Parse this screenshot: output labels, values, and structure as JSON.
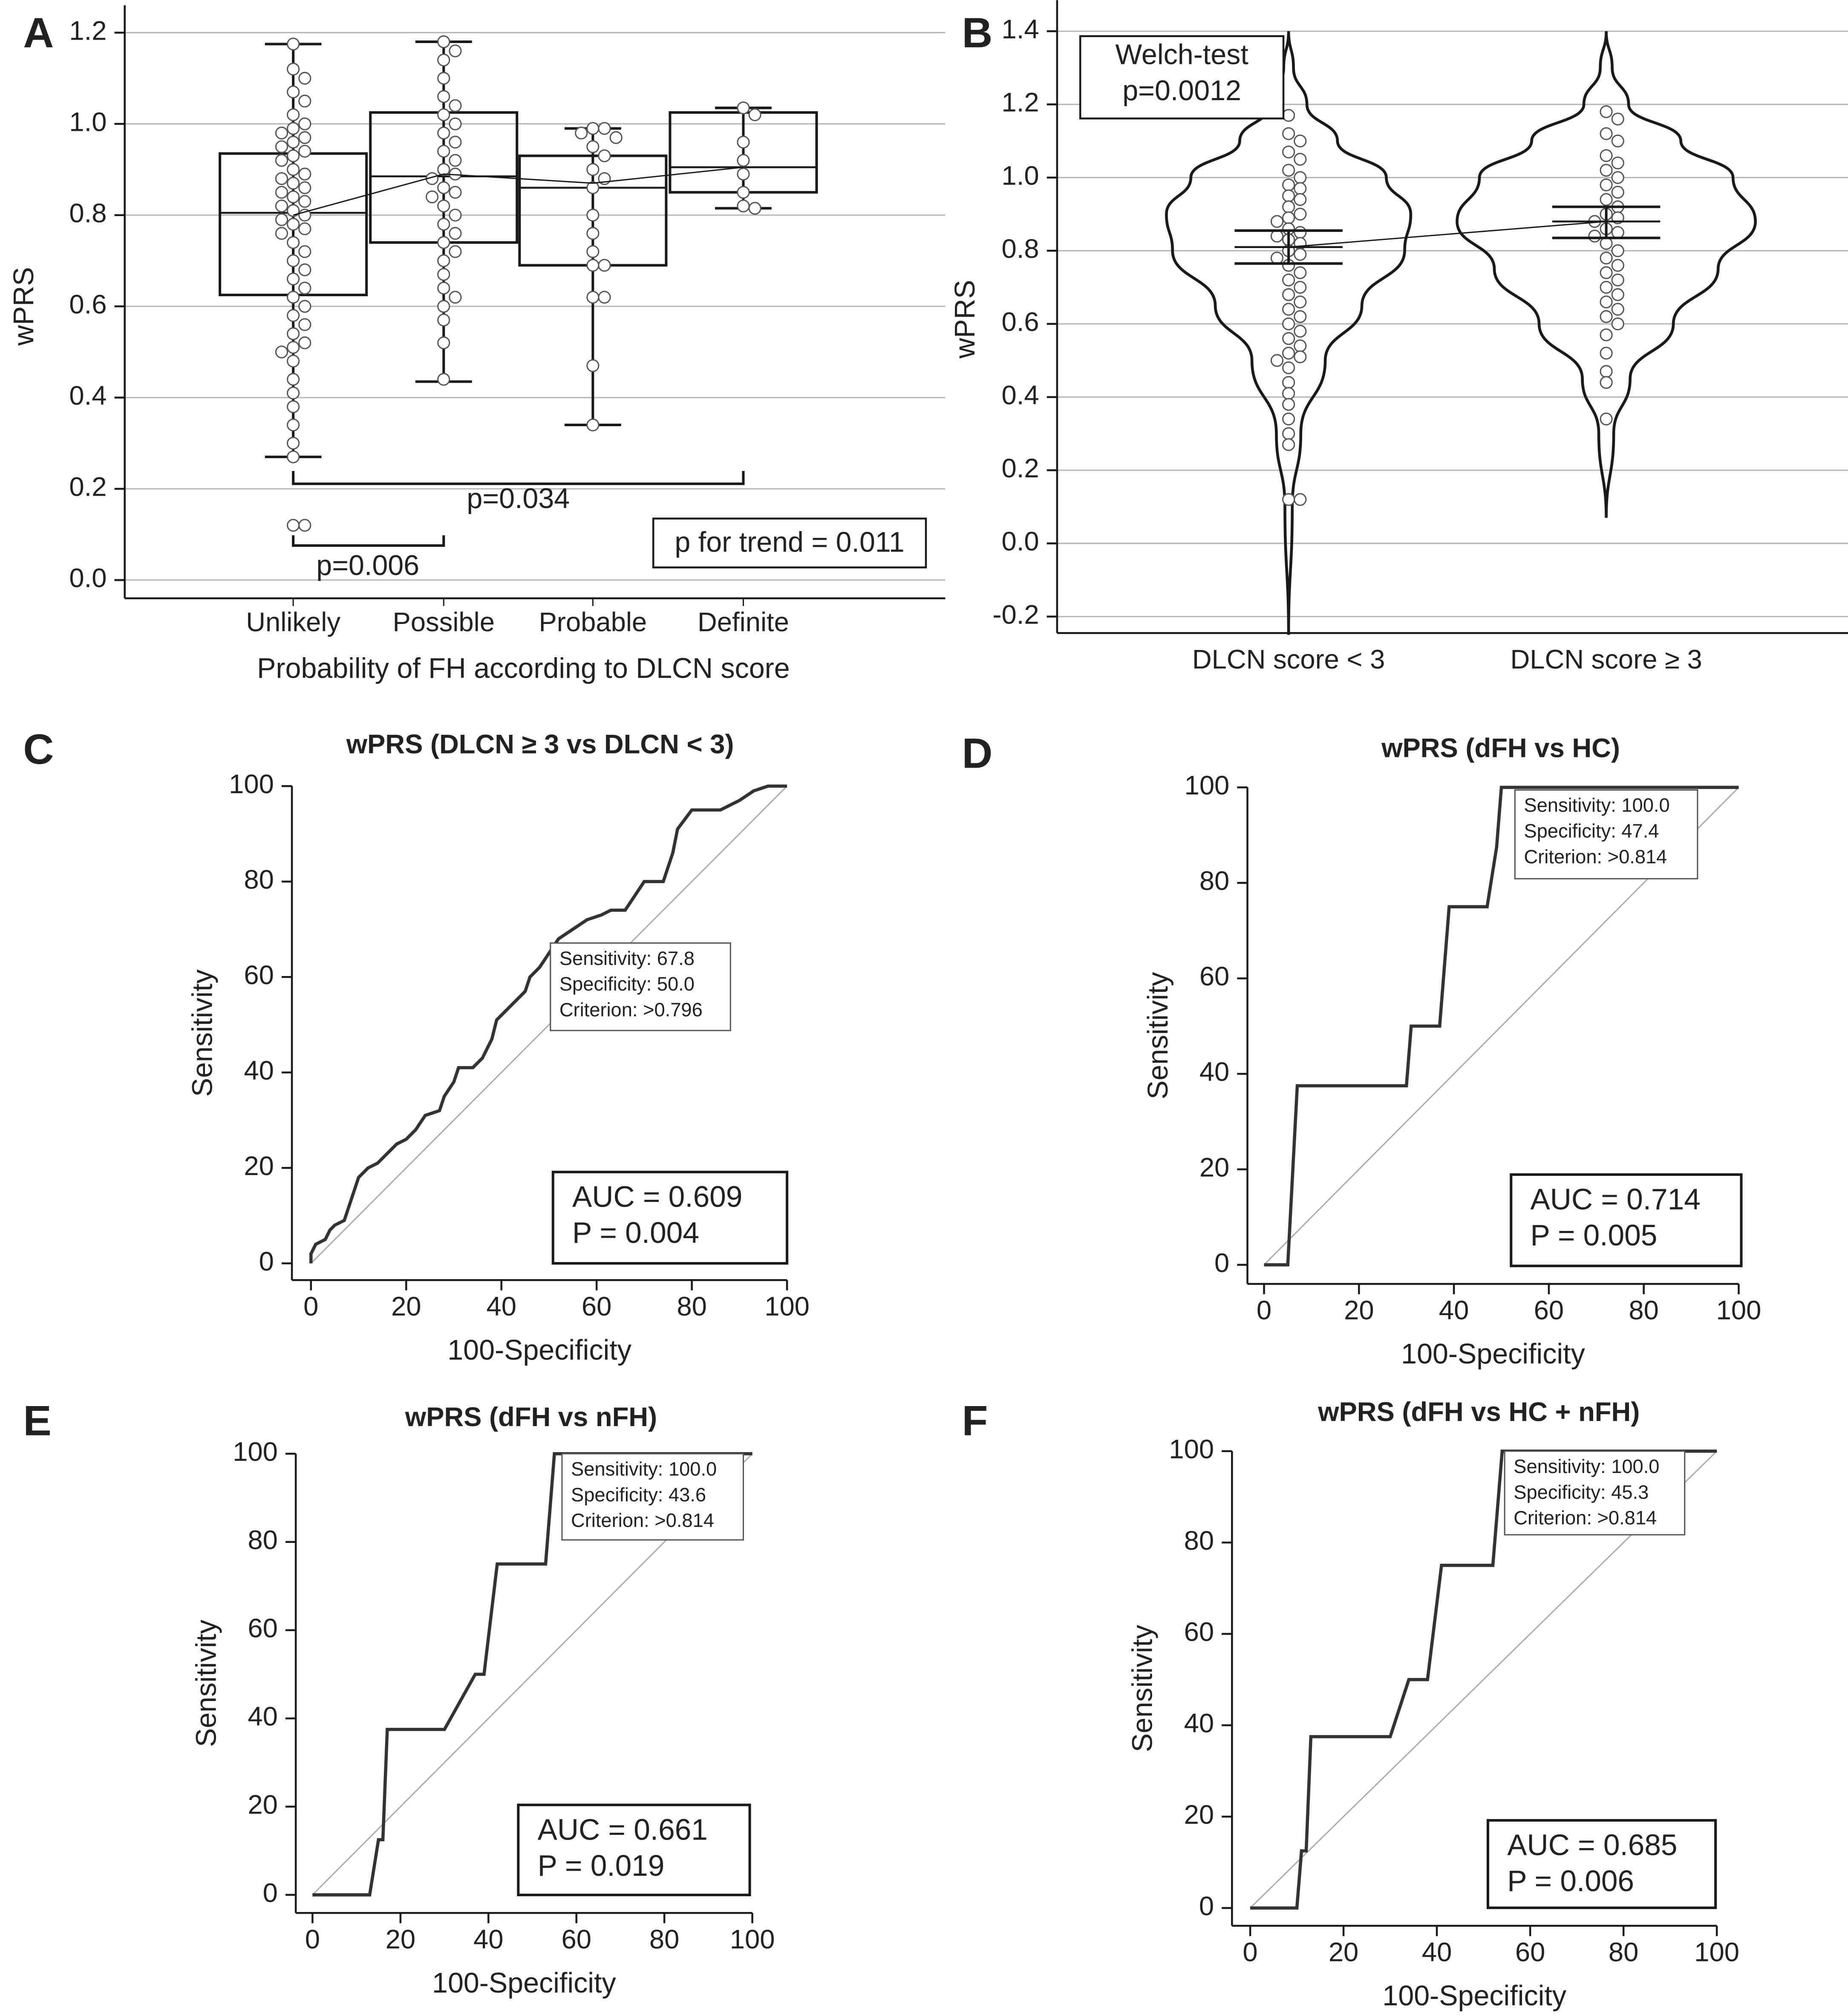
{
  "chart_data": [
    {
      "type": "box",
      "panel": "A",
      "ylabel": "wPRS",
      "xlabel": "Probability of FH according to DLCN score",
      "categories": [
        "Unlikely",
        "Possible",
        "Probable",
        "Definite"
      ],
      "whisker_low": [
        0.27,
        0.435,
        0.34,
        0.815
      ],
      "q1": [
        0.625,
        0.74,
        0.69,
        0.85
      ],
      "median": [
        0.805,
        0.885,
        0.86,
        0.905
      ],
      "q3": [
        0.935,
        1.025,
        0.93,
        1.025
      ],
      "whisker_high": [
        1.175,
        1.18,
        0.99,
        1.035
      ],
      "means": [
        0.8,
        0.89,
        0.87,
        0.905
      ],
      "points": [
        [
          1.175,
          1.12,
          1.1,
          1.07,
          1.05,
          1.02,
          1.0,
          0.99,
          0.98,
          0.97,
          0.96,
          0.95,
          0.94,
          0.93,
          0.92,
          0.9,
          0.89,
          0.88,
          0.87,
          0.86,
          0.85,
          0.84,
          0.83,
          0.82,
          0.81,
          0.8,
          0.79,
          0.78,
          0.77,
          0.76,
          0.74,
          0.72,
          0.7,
          0.68,
          0.66,
          0.64,
          0.62,
          0.6,
          0.58,
          0.56,
          0.54,
          0.52,
          0.51,
          0.5,
          0.48,
          0.44,
          0.41,
          0.38,
          0.34,
          0.3,
          0.27,
          0.12,
          0.12
        ],
        [
          1.18,
          1.16,
          1.14,
          1.1,
          1.06,
          1.04,
          1.02,
          1.0,
          0.98,
          0.96,
          0.94,
          0.92,
          0.9,
          0.89,
          0.88,
          0.86,
          0.85,
          0.84,
          0.82,
          0.8,
          0.78,
          0.76,
          0.74,
          0.72,
          0.7,
          0.67,
          0.64,
          0.62,
          0.6,
          0.57,
          0.52,
          0.44
        ],
        [
          0.99,
          0.99,
          0.98,
          0.97,
          0.95,
          0.93,
          0.9,
          0.88,
          0.86,
          0.8,
          0.76,
          0.72,
          0.69,
          0.69,
          0.62,
          0.62,
          0.47,
          0.34
        ],
        [
          1.035,
          1.02,
          0.96,
          0.92,
          0.89,
          0.85,
          0.82,
          0.815
        ]
      ],
      "annotations": [
        "p=0.006",
        "p=0.034",
        "p for trend = 0.011"
      ],
      "ylim": [
        -0.04,
        1.26
      ],
      "yticks": [
        {
          "value": 0,
          "label": "0.0"
        },
        0.2,
        0.4,
        0.6,
        0.8,
        {
          "value": 1,
          "label": "1.0"
        },
        1.2
      ],
      "grid": true
    },
    {
      "type": "violin",
      "panel": "B",
      "ylabel": "wPRS",
      "categories": [
        "DLCN score < 3",
        "DLCN score ≥ 3"
      ],
      "means": [
        0.81,
        0.88
      ],
      "ci_low": [
        0.765,
        0.835
      ],
      "ci_high": [
        0.855,
        0.92
      ],
      "density": [
        {
          "y": [
            -0.25,
            0.1,
            0.3,
            0.5,
            0.65,
            0.8,
            0.9,
            1.0,
            1.1,
            1.2,
            1.3,
            1.4
          ],
          "width": [
            0,
            0.03,
            0.1,
            0.3,
            0.6,
            0.95,
            1.0,
            0.8,
            0.4,
            0.15,
            0.04,
            0
          ]
        },
        {
          "y": [
            0.07,
            0.3,
            0.45,
            0.6,
            0.75,
            0.88,
            1.0,
            1.1,
            1.2,
            1.3,
            1.4
          ],
          "width": [
            0,
            0.05,
            0.16,
            0.45,
            0.75,
            1.0,
            0.85,
            0.5,
            0.15,
            0.04,
            0
          ]
        }
      ],
      "points": [
        [
          1.17,
          1.12,
          1.1,
          1.07,
          1.05,
          1.02,
          1.0,
          0.98,
          0.97,
          0.95,
          0.94,
          0.92,
          0.9,
          0.89,
          0.88,
          0.86,
          0.85,
          0.84,
          0.83,
          0.82,
          0.8,
          0.79,
          0.78,
          0.76,
          0.74,
          0.72,
          0.7,
          0.68,
          0.66,
          0.64,
          0.62,
          0.6,
          0.58,
          0.56,
          0.54,
          0.52,
          0.51,
          0.5,
          0.48,
          0.44,
          0.41,
          0.38,
          0.34,
          0.3,
          0.27,
          0.12,
          0.12
        ],
        [
          1.18,
          1.16,
          1.12,
          1.1,
          1.06,
          1.04,
          1.02,
          1.0,
          0.98,
          0.96,
          0.94,
          0.92,
          0.9,
          0.89,
          0.88,
          0.86,
          0.85,
          0.84,
          0.82,
          0.8,
          0.78,
          0.76,
          0.74,
          0.72,
          0.7,
          0.68,
          0.66,
          0.64,
          0.62,
          0.6,
          0.57,
          0.52,
          0.47,
          0.44,
          0.34
        ]
      ],
      "annotations": [
        "Welch-test",
        "p=0.0012"
      ],
      "ylim": [
        -0.245,
        1.485
      ],
      "yticks": [
        -0.2,
        {
          "value": 0,
          "label": "0.0"
        },
        0.2,
        0.4,
        0.6,
        0.8,
        {
          "value": 1,
          "label": "1.0"
        },
        1.2,
        1.4
      ],
      "grid": true
    },
    {
      "type": "roc",
      "panel": "C",
      "title": "wPRS (DLCN ≥ 3 vs DLCN < 3)",
      "xlabel": "100-Specificity",
      "ylabel": "Sensitivity",
      "x": [
        0,
        0,
        1,
        3,
        4,
        5,
        7,
        8,
        9,
        10,
        12,
        14,
        16,
        18,
        20,
        22,
        24,
        27,
        28,
        30,
        31,
        34,
        36,
        38,
        39,
        41,
        43,
        45,
        46,
        48,
        50,
        52,
        55,
        58,
        61,
        63,
        66,
        68,
        70,
        74,
        76,
        77,
        80,
        86,
        90,
        93,
        96,
        100
      ],
      "y": [
        0,
        2,
        4,
        5,
        7,
        8,
        9,
        12,
        15,
        18,
        20,
        21,
        23,
        25,
        26,
        28,
        31,
        32,
        35,
        38,
        41,
        41,
        43,
        47,
        51,
        53,
        55,
        57,
        60,
        62,
        65,
        68,
        70,
        72,
        73,
        74,
        74,
        77,
        80,
        80,
        86,
        91,
        95,
        95,
        97,
        99,
        100,
        100
      ],
      "info": [
        "Sensitivity: 67.8",
        "Specificity: 50.0",
        "Criterion: >0.796"
      ],
      "stats": [
        "AUC = 0.609",
        "P = 0.004"
      ],
      "diagonal": true,
      "xlim": [
        -4,
        100
      ],
      "ylim": [
        -3.5,
        100
      ],
      "xticks": [
        0,
        20,
        40,
        60,
        80,
        100
      ],
      "yticks": [
        0,
        20,
        40,
        60,
        80,
        100
      ]
    },
    {
      "type": "roc",
      "panel": "D",
      "title": "wPRS (dFH vs HC)",
      "xlabel": "100-Specificity",
      "ylabel": "Sensitivity",
      "x": [
        0,
        5,
        7,
        30,
        31,
        37,
        39,
        47,
        49,
        50,
        100
      ],
      "y": [
        0,
        0,
        37.5,
        37.5,
        50,
        50,
        75,
        75,
        87.5,
        100,
        100
      ],
      "info": [
        "Sensitivity: 100.0",
        "Specificity: 47.4",
        "Criterion: >0.814"
      ],
      "stats": [
        "AUC = 0.714",
        "P = 0.005"
      ],
      "diagonal": true,
      "xlim": [
        -3.5,
        100
      ],
      "ylim": [
        -4,
        100
      ],
      "xticks": [
        0,
        20,
        40,
        60,
        80,
        100
      ],
      "yticks": [
        0,
        20,
        40,
        60,
        80,
        100
      ]
    },
    {
      "type": "roc",
      "panel": "E",
      "title": "wPRS (dFH vs nFH)",
      "xlabel": "100-Specificity",
      "ylabel": "Sensitivity",
      "x": [
        0,
        13,
        15,
        16,
        17,
        30,
        37,
        39,
        42,
        53,
        55,
        100
      ],
      "y": [
        0,
        0,
        12.5,
        12.5,
        37.5,
        37.5,
        50,
        50,
        75,
        75,
        100,
        100
      ],
      "info": [
        "Sensitivity: 100.0",
        "Specificity: 43.6",
        "Criterion: >0.814"
      ],
      "stats": [
        "AUC = 0.661",
        "P = 0.019"
      ],
      "diagonal": true,
      "xlim": [
        -3.8,
        100
      ],
      "ylim": [
        -4.1,
        100
      ],
      "xticks": [
        0,
        20,
        40,
        60,
        80,
        100
      ],
      "yticks": [
        0,
        20,
        40,
        60,
        80,
        100
      ]
    },
    {
      "type": "roc",
      "panel": "F",
      "title": "wPRS (dFH vs HC + nFH)",
      "xlabel": "100-Specificity",
      "ylabel": "Sensitivity",
      "x": [
        0,
        10,
        11,
        12,
        13,
        30,
        34,
        38,
        41,
        52,
        54,
        100
      ],
      "y": [
        0,
        0,
        12.5,
        12.5,
        37.5,
        37.5,
        50,
        50,
        75,
        75,
        100,
        100
      ],
      "info": [
        "Sensitivity: 100.0",
        "Specificity: 45.3",
        "Criterion: >0.814"
      ],
      "stats": [
        "AUC = 0.685",
        "P = 0.006"
      ],
      "diagonal": true,
      "xlim": [
        -3.9,
        100
      ],
      "ylim": [
        -3.9,
        100
      ],
      "xticks": [
        0,
        20,
        40,
        60,
        80,
        100
      ],
      "yticks": [
        0,
        20,
        40,
        60,
        80,
        100
      ]
    }
  ]
}
